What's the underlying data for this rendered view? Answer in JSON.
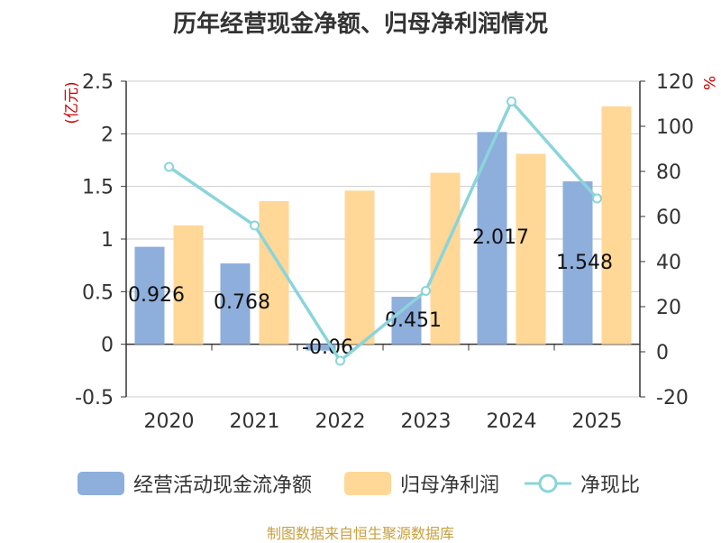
{
  "chart_data": {
    "type": "bar",
    "title": "历年经营现金净额、归母净利润情况",
    "categories": [
      "2020",
      "2021",
      "2022",
      "2023",
      "2024",
      "2025"
    ],
    "series": [
      {
        "name": "经营活动现金流净额",
        "type": "bar",
        "axis": "left",
        "color": "#8eaedb",
        "values": [
          0.926,
          0.768,
          -0.06,
          0.451,
          2.017,
          1.548
        ],
        "data_labels": [
          "0.926",
          "0.768",
          "-0.06",
          "0.451",
          "2.017",
          "1.548"
        ]
      },
      {
        "name": "归母净利润",
        "type": "bar",
        "axis": "left",
        "color": "#ffd797",
        "values": [
          1.13,
          1.36,
          1.46,
          1.63,
          1.81,
          2.26
        ]
      },
      {
        "name": "净现比",
        "type": "line",
        "axis": "right",
        "color": "#8bd4db",
        "values": [
          82,
          56,
          -4,
          27,
          111,
          68
        ]
      }
    ],
    "ylabel_left": "(亿元)",
    "ylabel_right": "%",
    "ylim_left": [
      -0.5,
      2.5
    ],
    "ylim_right": [
      -20,
      120
    ],
    "yticks_left": [
      "2.5",
      "2",
      "1.5",
      "1",
      "0.5",
      "0",
      "-0.5"
    ],
    "yticks_right": [
      "120",
      "100",
      "80",
      "60",
      "40",
      "20",
      "0",
      "-20"
    ],
    "grid": true,
    "legend_position": "bottom"
  },
  "source": "制图数据来自恒生聚源数据库",
  "colors": {
    "axis_label_red": "#cc0000",
    "grid": "#cccccc",
    "text": "#333333"
  }
}
